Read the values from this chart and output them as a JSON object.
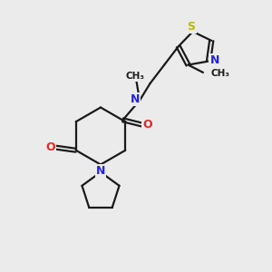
{
  "bg_color": "#ebebeb",
  "bond_color": "#1a1a1a",
  "bond_width": 1.6,
  "dbo": 0.06,
  "atom_colors": {
    "N": "#2222ee",
    "O": "#ee2222",
    "S": "#bbbb00",
    "C": "#1a1a1a"
  },
  "figsize": [
    3.0,
    3.0
  ],
  "dpi": 100
}
